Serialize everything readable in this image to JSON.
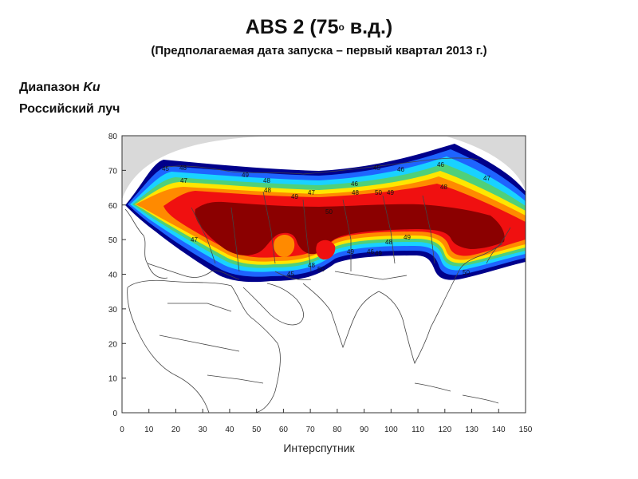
{
  "header": {
    "title_main": "ABS 2 (75",
    "title_degree": "o",
    "title_tail": " в.д.)",
    "subtitle": "(Предполагаемая дата запуска – первый квартал 2013 г.)"
  },
  "labels": {
    "band_prefix": "Диапазон ",
    "band_name": "Ku",
    "beam": "Российский луч"
  },
  "caption": "Интерспутник",
  "map": {
    "lon_ticks": [
      "0",
      "10",
      "20",
      "30",
      "40",
      "50",
      "60",
      "70",
      "80",
      "90",
      "100",
      "110",
      "120",
      "130",
      "140",
      "150"
    ],
    "lat_ticks": [
      "80",
      "70",
      "60",
      "50",
      "40",
      "30",
      "20",
      "10",
      "0"
    ],
    "contour_labels": [
      "46",
      "45",
      "48",
      "47",
      "48",
      "49",
      "48",
      "47",
      "46",
      "45",
      "48",
      "46",
      "47",
      "48",
      "49",
      "50",
      "49",
      "50",
      "49",
      "48",
      "49",
      "45",
      "48",
      "50",
      "46",
      "49",
      "50",
      "47"
    ],
    "colors": {
      "navy": "#00008b",
      "blue": "#1e64ff",
      "cyan": "#19d2ff",
      "green": "#4fd07a",
      "yellow": "#ffe600",
      "orange": "#ff8a00",
      "red": "#f01010",
      "darkred": "#8b0000",
      "land_fill": "#ffffff",
      "outside": "#d9d9d9",
      "border": "#444444"
    }
  }
}
